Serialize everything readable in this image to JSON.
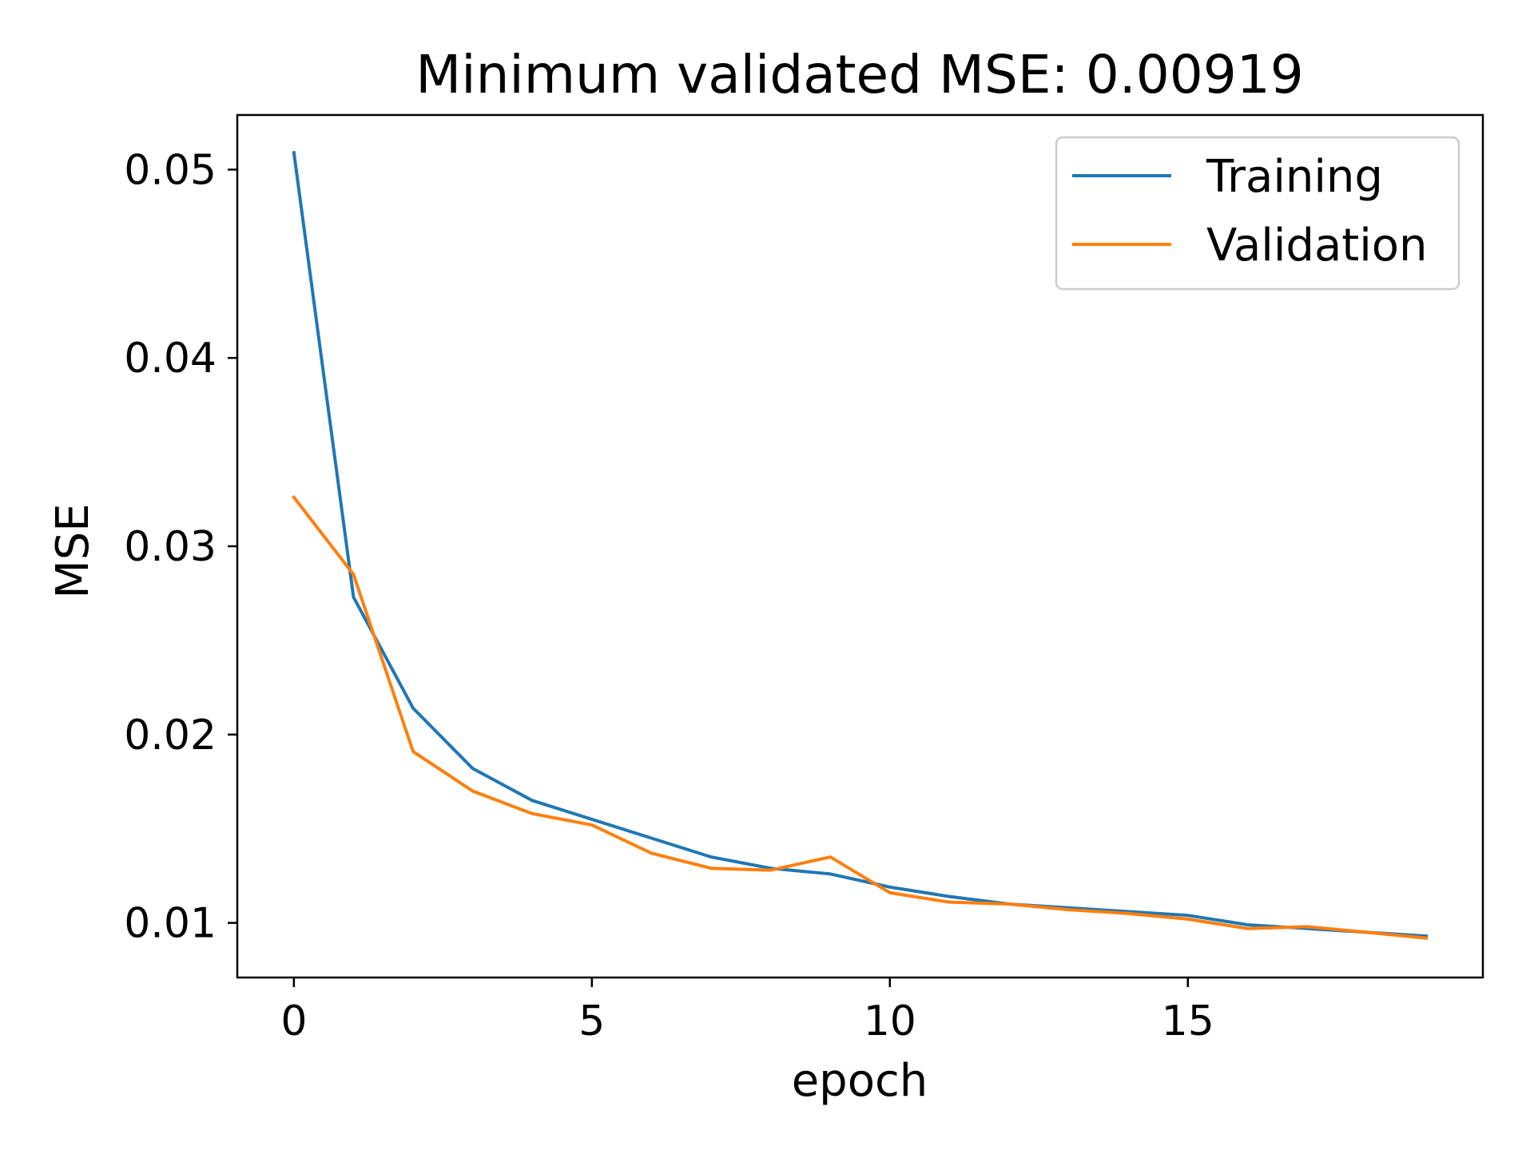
{
  "chart_data": {
    "type": "line",
    "title": "Minimum validated MSE: 0.00919",
    "xlabel": "epoch",
    "ylabel": "MSE",
    "xlim": [
      -0.95,
      19.95
    ],
    "ylim": [
      0.0071,
      0.0529
    ],
    "xticks": [
      {
        "value": 0,
        "label": "0"
      },
      {
        "value": 5,
        "label": "5"
      },
      {
        "value": 10,
        "label": "10"
      },
      {
        "value": 15,
        "label": "15"
      }
    ],
    "yticks": [
      {
        "value": 0.01,
        "label": "0.01"
      },
      {
        "value": 0.02,
        "label": "0.02"
      },
      {
        "value": 0.03,
        "label": "0.03"
      },
      {
        "value": 0.04,
        "label": "0.04"
      },
      {
        "value": 0.05,
        "label": "0.05"
      }
    ],
    "grid": false,
    "legend_position": "top-right",
    "x": [
      0,
      1,
      2,
      3,
      4,
      5,
      6,
      7,
      8,
      9,
      10,
      11,
      12,
      13,
      14,
      15,
      16,
      17,
      18,
      19
    ],
    "series": [
      {
        "name": "Training",
        "color": "#1f77b4",
        "values": [
          0.0509,
          0.0273,
          0.0214,
          0.0182,
          0.0165,
          0.0155,
          0.0145,
          0.0135,
          0.0129,
          0.0126,
          0.0119,
          0.0114,
          0.011,
          0.0108,
          0.0106,
          0.0104,
          0.0099,
          0.0097,
          0.0095,
          0.0093
        ]
      },
      {
        "name": "Validation",
        "color": "#ff7f0e",
        "values": [
          0.0326,
          0.0285,
          0.0191,
          0.017,
          0.0158,
          0.0152,
          0.0137,
          0.0129,
          0.0128,
          0.0135,
          0.0116,
          0.0111,
          0.011,
          0.0107,
          0.0105,
          0.0102,
          0.0097,
          0.0098,
          0.0095,
          0.00919
        ]
      }
    ]
  }
}
